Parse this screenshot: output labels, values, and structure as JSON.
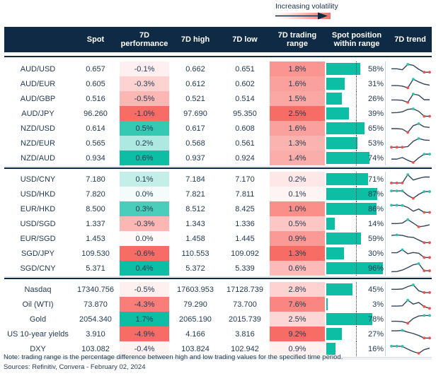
{
  "palette": {
    "navy": "#0E2A44",
    "teal": "#0DBEA4",
    "red": "#F86C66",
    "spark_line": "#32455C",
    "spark_red_dot": "#F0504C",
    "spark_teal_dot": "#2BC3AB"
  },
  "legend": {
    "label": "Increasing volatility",
    "arrow_icon": "right-arrow"
  },
  "chart_data": {
    "type": "table",
    "columns": [
      "",
      "Spot",
      "7D performance",
      "7D high",
      "7D low",
      "7D trading range",
      "Spot position within range",
      "7D trend"
    ],
    "position_midline_pct": 50,
    "groups": [
      {
        "perf_min": -1.0,
        "perf_max": 0.6,
        "range_max": 2.5,
        "rows": [
          {
            "label": "AUD/USD",
            "spot": "0.657",
            "perf": "-0.1%",
            "perf_v": -0.1,
            "high": "0.662",
            "low": "0.651",
            "range": "1.8%",
            "range_v": 1.8,
            "pos": 58,
            "pos_label": "58%",
            "spark": {
              "pts": [
                0.55,
                0.55,
                0.45,
                1.0,
                0.9,
                0.5,
                0.2,
                0.2
              ],
              "teal": [
                3
              ],
              "red": [
                6,
                7
              ]
            }
          },
          {
            "label": "AUD/EUR",
            "spot": "0.605",
            "perf": "-0.3%",
            "perf_v": -0.3,
            "high": "0.612",
            "low": "0.602",
            "range": "1.6%",
            "range_v": 1.6,
            "pos": 31,
            "pos_label": "31%",
            "spark": {
              "pts": [
                0.35,
                0.35,
                0.3,
                0.12,
                1.0,
                0.72,
                0.5,
                0.4
              ],
              "teal": [
                4
              ],
              "red": [
                3
              ]
            }
          },
          {
            "label": "AUD/GBP",
            "spot": "0.516",
            "perf": "-0.5%",
            "perf_v": -0.5,
            "high": "0.521",
            "low": "0.514",
            "range": "1.5%",
            "range_v": 1.5,
            "pos": 26,
            "pos_label": "26%",
            "spark": {
              "pts": [
                0.4,
                0.4,
                0.36,
                0.15,
                1.0,
                0.88,
                0.42,
                0.42
              ],
              "teal": [
                4
              ],
              "red": [
                3
              ]
            }
          },
          {
            "label": "AUD/JPY",
            "spot": "96.260",
            "perf": "-1.0%",
            "perf_v": -1.0,
            "high": "97.690",
            "low": "95.350",
            "range": "2.5%",
            "range_v": 2.5,
            "pos": 39,
            "pos_label": "39%",
            "spark": {
              "pts": [
                0.6,
                0.62,
                0.7,
                0.95,
                1.0,
                0.75,
                0.25,
                0.25
              ],
              "teal": [
                4
              ],
              "red": [
                6,
                7
              ]
            }
          },
          {
            "label": "NZD/USD",
            "spot": "0.614",
            "perf": "0.5%",
            "perf_v": 0.5,
            "high": "0.617",
            "low": "0.608",
            "range": "1.6%",
            "range_v": 1.6,
            "pos": 65,
            "pos_label": "65%",
            "spark": {
              "pts": [
                0.5,
                0.5,
                0.45,
                0.12,
                0.8,
                1.0,
                0.68,
                0.62
              ],
              "teal": [
                5
              ],
              "red": [
                3
              ]
            }
          },
          {
            "label": "NZD/EUR",
            "spot": "0.565",
            "perf": "0.2%",
            "perf_v": 0.2,
            "high": "0.568",
            "low": "0.561",
            "range": "1.3%",
            "range_v": 1.3,
            "pos": 53,
            "pos_label": "53%",
            "spark": {
              "pts": [
                0.12,
                0.12,
                0.12,
                0.18,
                0.72,
                1.0,
                0.85,
                0.82
              ],
              "teal": [
                5
              ],
              "red": [
                0,
                1,
                2
              ]
            }
          },
          {
            "label": "NZD/AUD",
            "spot": "0.934",
            "perf": "0.6%",
            "perf_v": 0.6,
            "high": "0.937",
            "low": "0.924",
            "range": "1.4%",
            "range_v": 1.4,
            "pos": 74,
            "pos_label": "74%",
            "spark": {
              "pts": [
                0.42,
                0.42,
                0.58,
                0.3,
                0.08,
                0.55,
                0.92,
                0.92
              ],
              "teal": [
                6,
                7
              ],
              "red": [
                4
              ]
            }
          }
        ]
      },
      {
        "perf_min": -0.6,
        "perf_max": 0.4,
        "range_max": 1.3,
        "rows": [
          {
            "label": "USD/CNY",
            "spot": "7.180",
            "perf": "0.1%",
            "perf_v": 0.1,
            "high": "7.184",
            "low": "7.170",
            "range": "0.2%",
            "range_v": 0.2,
            "pos": 71,
            "pos_label": "71%",
            "spark": {
              "pts": [
                0.15,
                0.15,
                0.15,
                1.0,
                0.45,
                0.62,
                0.75,
                0.75
              ],
              "teal": [
                3
              ],
              "red": [
                0,
                1,
                2
              ]
            }
          },
          {
            "label": "USD/HKD",
            "spot": "7.820",
            "perf": "0.0%",
            "perf_v": 0.02,
            "high": "7.821",
            "low": "7.811",
            "range": "0.1%",
            "range_v": 0.1,
            "pos": 87,
            "pos_label": "87%",
            "spark": {
              "pts": [
                0.85,
                0.85,
                0.85,
                0.4,
                0.1,
                0.5,
                0.78,
                0.78
              ],
              "teal": [
                0,
                1,
                2,
                6,
                7
              ],
              "red": [
                4
              ]
            }
          },
          {
            "label": "EUR/HKD",
            "spot": "8.500",
            "perf": "0.3%",
            "perf_v": 0.3,
            "high": "8.512",
            "low": "8.425",
            "range": "1.0%",
            "range_v": 1.0,
            "pos": 86,
            "pos_label": "86%",
            "spark": {
              "pts": [
                0.9,
                0.9,
                0.88,
                0.68,
                0.3,
                0.52,
                0.18,
                0.18
              ],
              "teal": [
                0,
                1,
                2
              ],
              "red": [
                6,
                7
              ]
            }
          },
          {
            "label": "USD/SGD",
            "spot": "1.337",
            "perf": "-0.3%",
            "perf_v": -0.3,
            "high": "1.343",
            "low": "1.336",
            "range": "0.5%",
            "range_v": 0.5,
            "pos": 14,
            "pos_label": "14%",
            "spark": {
              "pts": [
                0.55,
                0.55,
                0.6,
                0.95,
                0.6,
                0.22,
                0.3,
                0.42
              ],
              "teal": [
                3
              ],
              "red": [
                5
              ]
            }
          },
          {
            "label": "EUR/SGD",
            "spot": "1.453",
            "perf": "0.0%",
            "perf_v": -0.02,
            "high": "1.458",
            "low": "1.445",
            "range": "0.9%",
            "range_v": 0.9,
            "pos": 59,
            "pos_label": "59%",
            "spark": {
              "pts": [
                0.85,
                0.9,
                0.85,
                0.7,
                0.65,
                0.38,
                0.12,
                0.12
              ],
              "teal": [
                1
              ],
              "red": [
                6,
                7
              ]
            }
          },
          {
            "label": "SGD/JPY",
            "spot": "109.530",
            "perf": "-0.6%",
            "perf_v": -0.6,
            "high": "110.553",
            "low": "109.092",
            "range": "1.3%",
            "range_v": 1.3,
            "pos": 30,
            "pos_label": "30%",
            "spark": {
              "pts": [
                0.6,
                0.6,
                0.9,
                0.5,
                0.62,
                0.55,
                0.12,
                0.12
              ],
              "teal": [
                2
              ],
              "red": [
                6,
                7
              ]
            }
          },
          {
            "label": "SGD/CNY",
            "spot": "5.371",
            "perf": "0.4%",
            "perf_v": 0.4,
            "high": "5.372",
            "low": "5.339",
            "range": "0.6%",
            "range_v": 0.6,
            "pos": 96,
            "pos_label": "96%",
            "spark": {
              "pts": [
                0.18,
                0.2,
                0.35,
                0.6,
                0.88,
                1.0,
                0.28,
                0.28
              ],
              "teal": [
                5
              ],
              "red": [
                6,
                7
              ]
            }
          }
        ]
      },
      {
        "perf_min": -4.9,
        "perf_max": 1.7,
        "range_max": 9.2,
        "rows": [
          {
            "label": "Nasdaq",
            "spot": "17340.756",
            "perf": "-0.5%",
            "perf_v": -0.5,
            "high": "17603.953",
            "low": "17128.739",
            "range": "2.8%",
            "range_v": 2.8,
            "pos": 45,
            "pos_label": "45%",
            "spark": {
              "pts": [
                0.55,
                0.55,
                0.58,
                0.82,
                1.0,
                0.4,
                0.22,
                0.22
              ],
              "teal": [
                4
              ],
              "red": [
                6,
                7
              ]
            }
          },
          {
            "label": "Oil (WTI)",
            "spot": "73.870",
            "perf": "-4.3%",
            "perf_v": -4.3,
            "high": "79.290",
            "low": "73.700",
            "range": "7.6%",
            "range_v": 7.6,
            "pos": 3,
            "pos_label": "3%",
            "spark": {
              "pts": [
                0.35,
                0.35,
                0.38,
                0.95,
                0.55,
                0.72,
                0.3,
                0.12
              ],
              "teal": [
                3
              ],
              "red": [
                6,
                7
              ]
            }
          },
          {
            "label": "Gold",
            "spot": "2054.340",
            "perf": "1.7%",
            "perf_v": 1.7,
            "high": "2065.190",
            "low": "2015.739",
            "range": "2.5%",
            "range_v": 2.5,
            "pos": 78,
            "pos_label": "78%",
            "spark": {
              "pts": [
                0.32,
                0.32,
                0.28,
                0.12,
                0.6,
                0.85,
                0.9,
                0.9
              ],
              "teal": [
                6,
                7
              ],
              "red": [
                3
              ]
            }
          },
          {
            "label": "US 10-year yields",
            "spot": "3.910",
            "perf": "-4.9%",
            "perf_v": -4.9,
            "high": "4.166",
            "low": "3.816",
            "range": "9.2%",
            "range_v": 9.2,
            "pos": 27,
            "pos_label": "27%",
            "spark": {
              "pts": [
                0.85,
                0.85,
                0.9,
                0.72,
                0.58,
                0.38,
                0.12,
                0.12
              ],
              "teal": [
                2
              ],
              "red": [
                6,
                7
              ]
            }
          },
          {
            "label": "DXY",
            "spot": "103.082",
            "perf": "-0.4%",
            "perf_v": -0.4,
            "high": "103.824",
            "low": "102.942",
            "range": "0.9%",
            "range_v": 0.9,
            "pos": 16,
            "pos_label": "16%",
            "spark": {
              "pts": [
                0.8,
                0.8,
                0.78,
                0.5,
                0.25,
                0.08,
                0.45,
                0.6
              ],
              "teal": [
                0,
                1,
                2
              ],
              "red": [
                5
              ]
            }
          }
        ]
      }
    ]
  },
  "footer": {
    "note": "Note: trading range is the percentage difference between high and low trading values for the specified time period.",
    "sources": "Sources: Refinitiv, Convera - February 02, 2024"
  }
}
